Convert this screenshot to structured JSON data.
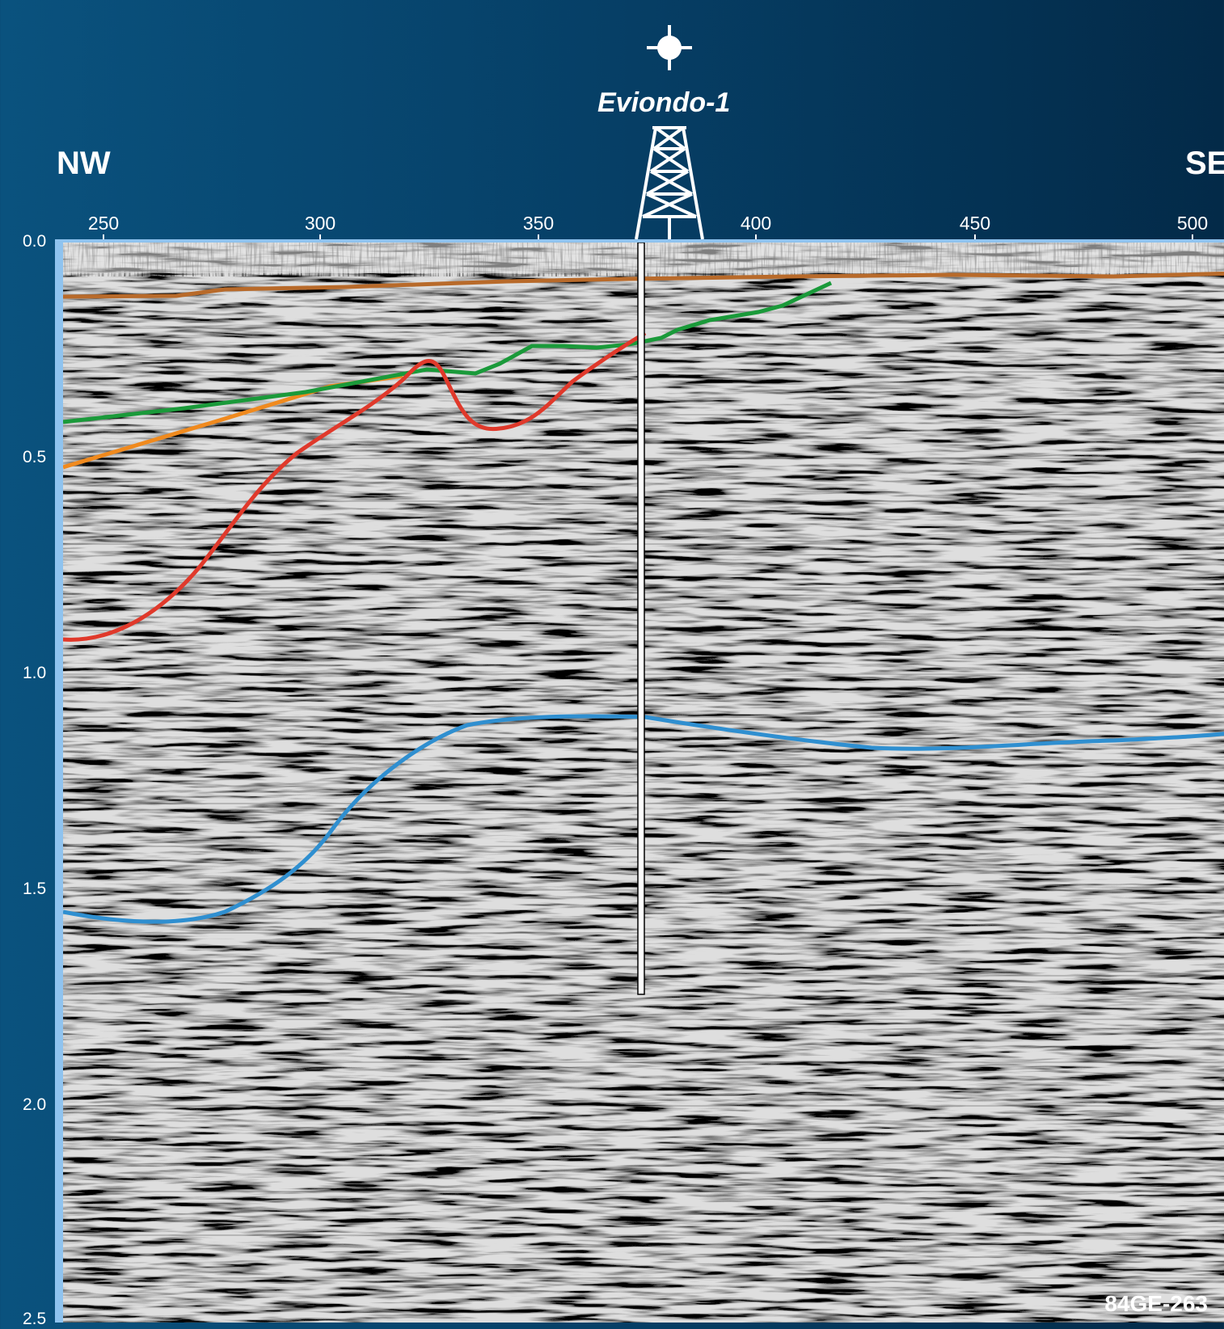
{
  "header": {
    "well_name": "Eviondo-1",
    "dir_left": "NW",
    "dir_right": "SE"
  },
  "axes": {
    "trace_ticks": [
      "250",
      "300",
      "350",
      "400",
      "450",
      "500"
    ],
    "time_ticks": [
      "0.0",
      "0.5",
      "1.0",
      "1.5",
      "2.0",
      "2.5"
    ]
  },
  "line_id": "84GE-263",
  "icons": {
    "well_symbol": "well-location-icon",
    "derrick": "drilling-derrick-icon"
  },
  "colors": {
    "horizon_orange_dark": "#b86a2a",
    "horizon_orange": "#f08a1e",
    "horizon_green": "#1a9a3a",
    "horizon_red": "#e0392b",
    "horizon_blue": "#2f8fd0",
    "well_path": "#ffffff"
  }
}
